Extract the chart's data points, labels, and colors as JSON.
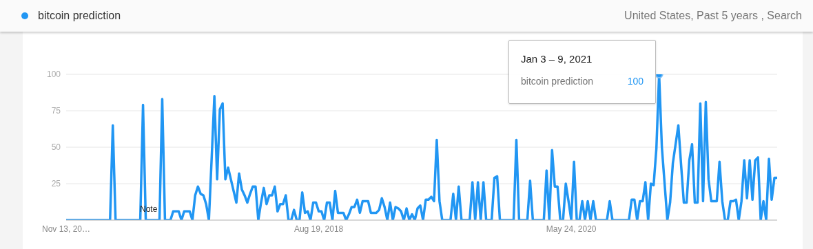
{
  "chart_data": {
    "type": "line",
    "subtitle": "United States, Past 5 years , Search",
    "legend": "top left",
    "grid": "y",
    "ylim": [
      0,
      100
    ],
    "yticks": [
      {
        "value": 0,
        "label": null
      },
      25,
      50,
      75,
      100
    ],
    "annotations": [
      "Jan 3 – 9, 2021",
      "Note"
    ],
    "categories": [
      "Nov 13, 20…",
      null,
      null,
      null,
      null,
      null,
      null,
      null,
      null,
      null,
      null,
      null,
      null,
      null,
      null,
      null,
      null,
      null,
      null,
      null,
      null,
      null,
      null,
      null,
      null,
      null,
      null,
      null,
      null,
      null,
      null,
      null,
      null,
      null,
      null,
      null,
      null,
      null,
      null,
      null,
      null,
      null,
      null,
      null,
      null,
      null,
      null,
      null,
      null,
      null,
      null,
      null,
      null,
      null,
      null,
      null,
      null,
      null,
      null,
      null,
      null,
      null,
      null,
      null,
      null,
      null,
      null,
      null,
      null,
      null,
      null,
      null,
      null,
      null,
      null,
      null,
      null,
      null,
      null,
      null,
      null,
      null,
      null,
      null,
      null,
      null,
      null,
      null,
      null,
      null,
      null,
      null,
      "Aug 19, 2018",
      null,
      null,
      null,
      null,
      null,
      null,
      null,
      null,
      null,
      null,
      null,
      null,
      null,
      null,
      null,
      null,
      null,
      null,
      null,
      null,
      null,
      null,
      null,
      null,
      null,
      null,
      null,
      null,
      null,
      null,
      null,
      null,
      null,
      null,
      null,
      null,
      null,
      null,
      null,
      null,
      null,
      null,
      null,
      null,
      null,
      null,
      null,
      null,
      null,
      null,
      null,
      null,
      null,
      null,
      null,
      null,
      null,
      null,
      null,
      null,
      null,
      null,
      null,
      null,
      null,
      null,
      null,
      null,
      null,
      null,
      null,
      null,
      null,
      null,
      null,
      null,
      null,
      null,
      null,
      null,
      null,
      null,
      null,
      null,
      null,
      null,
      null,
      null,
      null,
      null,
      null,
      "May 24, 2020",
      null,
      null,
      null,
      null,
      null,
      null,
      null,
      null,
      null,
      null,
      null,
      null,
      null,
      null,
      null,
      null,
      null,
      null,
      null,
      null,
      null,
      null,
      null,
      null,
      null,
      null,
      null,
      null,
      null,
      null,
      null,
      null,
      null,
      null,
      null,
      null,
      null,
      null,
      null,
      null,
      null,
      null,
      null,
      null,
      null,
      null,
      null,
      null,
      null,
      null,
      null,
      null,
      null,
      null,
      null,
      null,
      null,
      null,
      null,
      null,
      null,
      null,
      null,
      null,
      null,
      null,
      null,
      null,
      null,
      null,
      null,
      null,
      null,
      null,
      null
    ],
    "series": [
      {
        "name": "bitcoin prediction",
        "color": "#2196f3",
        "values": [
          0,
          0,
          0,
          0,
          0,
          0,
          0,
          0,
          0,
          0,
          0,
          0,
          0,
          0,
          0,
          0,
          0,
          65,
          0,
          0,
          0,
          0,
          0,
          0,
          0,
          0,
          0,
          0,
          79,
          0,
          0,
          0,
          0,
          0,
          0,
          83,
          0,
          0,
          0,
          6,
          6,
          6,
          0,
          6,
          6,
          6,
          0,
          17,
          23,
          18,
          17,
          11,
          0,
          42,
          85,
          28,
          76,
          80,
          28,
          36,
          28,
          20,
          12,
          32,
          21,
          17,
          12,
          18,
          23,
          23,
          0,
          12,
          22,
          11,
          17,
          17,
          23,
          6,
          11,
          11,
          17,
          0,
          0,
          7,
          0,
          0,
          19,
          5,
          6,
          0,
          12,
          12,
          6,
          6,
          0,
          12,
          12,
          0,
          20,
          5,
          5,
          5,
          0,
          4,
          9,
          9,
          14,
          5,
          13,
          13,
          13,
          5,
          5,
          5,
          7,
          15,
          9,
          0,
          12,
          0,
          9,
          8,
          6,
          0,
          8,
          0,
          4,
          0,
          8,
          10,
          0,
          14,
          14,
          16,
          13,
          55,
          13,
          0,
          0,
          0,
          0,
          18,
          0,
          23,
          0,
          0,
          0,
          0,
          26,
          0,
          26,
          0,
          26,
          0,
          0,
          0,
          29,
          30,
          0,
          0,
          0,
          0,
          0,
          0,
          55,
          0,
          0,
          0,
          0,
          27,
          0,
          0,
          0,
          0,
          0,
          34,
          0,
          48,
          23,
          23,
          0,
          0,
          25,
          13,
          0,
          40,
          0,
          0,
          13,
          0,
          13,
          0,
          13,
          0,
          0,
          0,
          0,
          0,
          13,
          0,
          0,
          0,
          0,
          0,
          0,
          0,
          14,
          14,
          0,
          13,
          13,
          26,
          0,
          25,
          24,
          49,
          100,
          50,
          25,
          0,
          12,
          39,
          52,
          65,
          38,
          12,
          12,
          41,
          52,
          12,
          12,
          80,
          13,
          81,
          28,
          13,
          13,
          13,
          40,
          13,
          0,
          0,
          13,
          13,
          14,
          0,
          13,
          41,
          15,
          41,
          14,
          41,
          43,
          0,
          13,
          0,
          42,
          14,
          29,
          29
        ],
        "value_labels": [
          null,
          null,
          null,
          null,
          null,
          null,
          null,
          null,
          null,
          null,
          null,
          null,
          null,
          null,
          null,
          null,
          null,
          null,
          null,
          null,
          null,
          null,
          null,
          null,
          null,
          null,
          null,
          null,
          null,
          null,
          null,
          null,
          null,
          null,
          null,
          null,
          null,
          null,
          null,
          null,
          null,
          null,
          null,
          null,
          null,
          null,
          null,
          null,
          null,
          null,
          null,
          null,
          null,
          null,
          null,
          null,
          null,
          null,
          null,
          null,
          null,
          null,
          null,
          null,
          null,
          null,
          null,
          null,
          null,
          null,
          null,
          null,
          null,
          null,
          null,
          null,
          null,
          null,
          null,
          null,
          null,
          null,
          null,
          null,
          null,
          null,
          null,
          null,
          null,
          null,
          null,
          null,
          null,
          null,
          null,
          null,
          null,
          null,
          null,
          null,
          null,
          null,
          null,
          null,
          null,
          null,
          null,
          null,
          null,
          null,
          null,
          null,
          null,
          null,
          null,
          null,
          null,
          null,
          null,
          null,
          null,
          null,
          null,
          null,
          null,
          null,
          null,
          null,
          null,
          null,
          null,
          null,
          null,
          null,
          null,
          null,
          null,
          null,
          null,
          null,
          null,
          null,
          null,
          null,
          null,
          null,
          null,
          null,
          null,
          null,
          null,
          null,
          null,
          null,
          null,
          null,
          null,
          null,
          null,
          null,
          null,
          null,
          null,
          null,
          null,
          null,
          null,
          null,
          null,
          null,
          null,
          null,
          null,
          null,
          null,
          null,
          null,
          null,
          null,
          null,
          null,
          null,
          null,
          null,
          null,
          null,
          null,
          null,
          null,
          null,
          null,
          null,
          null,
          null,
          null,
          null,
          null,
          null,
          null,
          null,
          null,
          null,
          null,
          null,
          null,
          null,
          null,
          null,
          null,
          null,
          null,
          null,
          null,
          null,
          null,
          null,
          "100",
          null,
          null,
          null,
          null,
          null,
          null,
          null,
          null,
          null,
          null,
          null,
          null,
          null,
          null,
          null,
          null,
          null,
          null,
          null,
          null,
          null,
          null,
          null,
          null,
          null,
          null,
          null,
          null,
          null,
          null,
          null,
          null,
          null,
          null,
          null,
          null,
          null,
          null,
          null,
          null,
          null,
          null,
          null
        ]
      }
    ]
  }
}
